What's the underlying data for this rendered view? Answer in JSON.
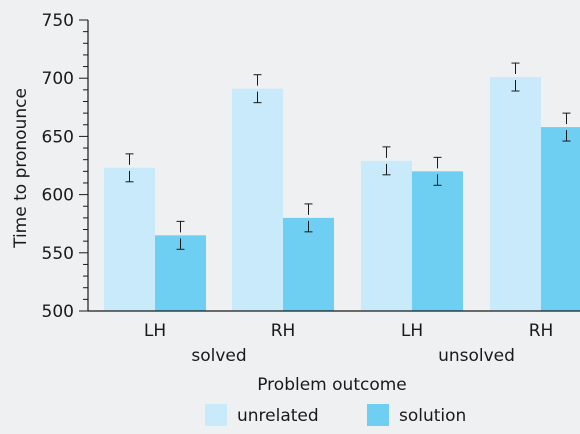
{
  "chart_data": {
    "type": "bar",
    "ylabel": "Time to pronounce",
    "xlabel": "Problem outcome",
    "ylim": [
      500,
      750
    ],
    "yticks": [
      500,
      550,
      600,
      650,
      700,
      750
    ],
    "y_minor_step": 10,
    "groups": [
      {
        "name": "solved",
        "categories": [
          "LH",
          "RH"
        ]
      },
      {
        "name": "unsolved",
        "categories": [
          "LH",
          "RH"
        ]
      }
    ],
    "categories": [
      "LH",
      "RH",
      "LH",
      "RH"
    ],
    "series": [
      {
        "name": "unrelated",
        "color": "#c9eafa",
        "values": [
          623,
          691,
          629,
          701
        ],
        "errors": [
          12,
          12,
          12,
          12
        ]
      },
      {
        "name": "solution",
        "color": "#6ecff3",
        "values": [
          565,
          580,
          620,
          658
        ],
        "errors": [
          12,
          12,
          12,
          12
        ]
      }
    ],
    "grid": false,
    "legend_position": "bottom"
  }
}
